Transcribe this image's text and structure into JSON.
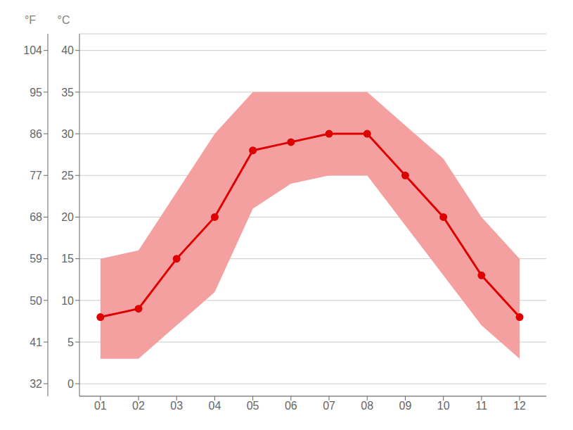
{
  "chart_data": {
    "type": "line",
    "ylabel": "°C",
    "y2label": "°F",
    "x": [
      1,
      2,
      3,
      4,
      5,
      6,
      7,
      8,
      9,
      10,
      11,
      12
    ],
    "xlim": [
      0.45,
      12.7
    ],
    "xticks": [
      {
        "value": 1,
        "label": "01"
      },
      {
        "value": 2,
        "label": "02"
      },
      {
        "value": 3,
        "label": "03"
      },
      {
        "value": 4,
        "label": "04"
      },
      {
        "value": 5,
        "label": "05"
      },
      {
        "value": 6,
        "label": "06"
      },
      {
        "value": 7,
        "label": "07"
      },
      {
        "value": 8,
        "label": "08"
      },
      {
        "value": 9,
        "label": "09"
      },
      {
        "value": 10,
        "label": "10"
      },
      {
        "value": 11,
        "label": "11"
      },
      {
        "value": 12,
        "label": "12"
      }
    ],
    "ylim": [
      -1.5,
      42
    ],
    "yticks": [
      0,
      5,
      10,
      15,
      20,
      25,
      30,
      35,
      40
    ],
    "y2lim": [
      29.3,
      107.6
    ],
    "y2ticks": [
      32,
      41,
      50,
      59,
      68,
      77,
      86,
      95,
      104
    ],
    "grid": "y",
    "series": [
      {
        "type": "band",
        "color": "#f5a0a0",
        "low": [
          3.0,
          3.0,
          7.0,
          11.0,
          21.0,
          24.0,
          25.0,
          25.0,
          19.0,
          13.0,
          7.0,
          3.0
        ],
        "high": [
          15.0,
          16.0,
          23.0,
          30.0,
          35.0,
          35.0,
          35.0,
          35.0,
          31.0,
          27.0,
          20.0,
          15.0
        ]
      },
      {
        "type": "line",
        "color": "#dd0000",
        "marker": "circle",
        "values": [
          8.0,
          9.0,
          15.0,
          20.0,
          28.0,
          29.0,
          30.0,
          30.0,
          25.0,
          20.0,
          13.0,
          8.0
        ]
      }
    ]
  }
}
